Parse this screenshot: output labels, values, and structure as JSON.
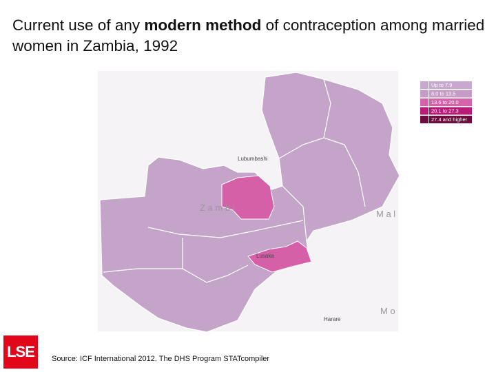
{
  "title": {
    "parts": [
      "Current use of any ",
      "modern method",
      " of contraception among married women in Zambia, 1992"
    ]
  },
  "legend": [
    {
      "label": "Up to 7.9",
      "color": "#c9a8cf"
    },
    {
      "label": "8.0 to 13.5",
      "color": "#c49cc6"
    },
    {
      "label": "13.6 to 20.0",
      "color": "#d463a9"
    },
    {
      "label": "20.1 to 27.3",
      "color": "#b81c78"
    },
    {
      "label": "27.4 and higher",
      "color": "#6e0b3f"
    }
  ],
  "map_labels": [
    "Lubumbashi",
    "Z a m b i",
    "M a l",
    "Lusaka",
    "M o",
    "Harare"
  ],
  "source": "Source: ICF International 2012. The DHS Program STATcompiler",
  "logo": "LSE"
}
